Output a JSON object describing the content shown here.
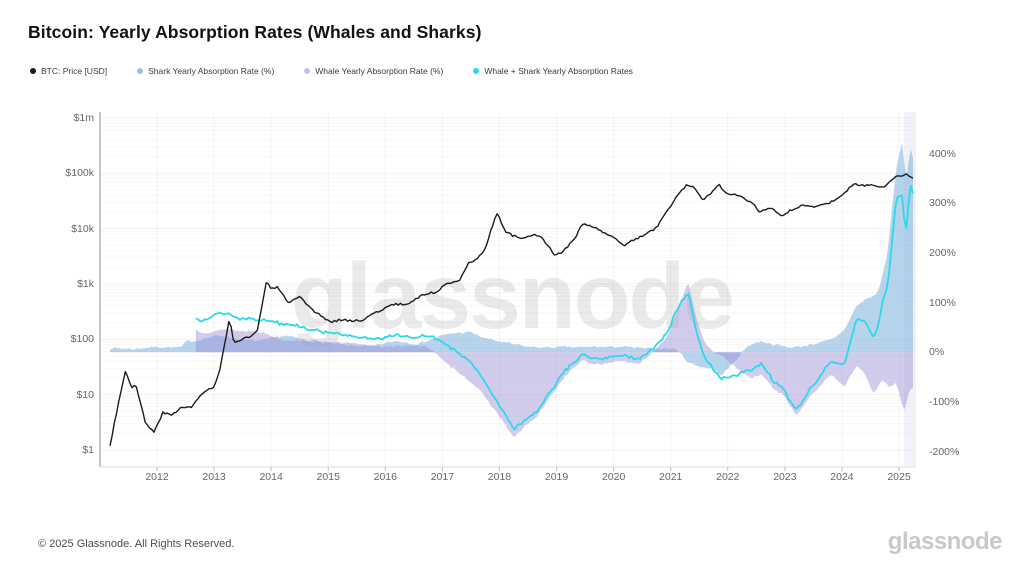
{
  "page": {
    "title": "Bitcoin: Yearly Absorption Rates (Whales and Sharks)"
  },
  "legend": {
    "position": "top-left",
    "items": [
      {
        "label": "BTC: Price [USD]",
        "color": "#1c1c1e"
      },
      {
        "label": "Shark Yearly Absorption Rate (%)",
        "color": "#8fc3e8"
      },
      {
        "label": "Whale Yearly Absorption Rate (%)",
        "color": "#c3bfe6"
      },
      {
        "label": "Whale + Shark Yearly Absorption Rates",
        "color": "#2bd9ea"
      }
    ]
  },
  "watermark": "glassnode",
  "footer": {
    "copyright": "© 2025 Glassnode. All Rights Reserved.",
    "logo": "glassnode"
  },
  "chart_data": {
    "type": "line",
    "subtype": "dual-axis composite: log price line + absorption-rate areas",
    "grid": "faint horizontal log gridlines and yearly vertical gridlines",
    "x_axis": {
      "tick_labels": [
        "2012",
        "2013",
        "2014",
        "2015",
        "2016",
        "2017",
        "2018",
        "2019",
        "2020",
        "2021",
        "2022",
        "2023",
        "2024",
        "2025"
      ],
      "range_years": [
        2011.0,
        2025.3
      ]
    },
    "y_axis_left": {
      "scale": "log",
      "tick_labels": [
        "$1m",
        "$100k",
        "$10k",
        "$1k",
        "$100",
        "$10",
        "$1"
      ],
      "tick_values": [
        1000000,
        100000,
        10000,
        1000,
        100,
        10,
        1
      ]
    },
    "y_axis_right": {
      "scale": "linear",
      "tick_labels": [
        "400%",
        "300%",
        "200%",
        "100%",
        "0%",
        "-100%",
        "-200%"
      ],
      "tick_values": [
        400,
        300,
        200,
        100,
        0,
        -100,
        -200
      ]
    },
    "series": [
      {
        "name": "BTC: Price [USD]",
        "type": "line",
        "axis": "left",
        "color": "#1c1c1e",
        "points": [
          [
            2011.15,
            0.8
          ],
          [
            2011.25,
            3
          ],
          [
            2011.45,
            29
          ],
          [
            2011.55,
            14
          ],
          [
            2011.62,
            17
          ],
          [
            2011.8,
            3.2
          ],
          [
            2011.95,
            2.2
          ],
          [
            2012.1,
            5
          ],
          [
            2012.25,
            4.5
          ],
          [
            2012.45,
            6.5
          ],
          [
            2012.6,
            6
          ],
          [
            2012.8,
            11
          ],
          [
            2013.0,
            13
          ],
          [
            2013.1,
            25
          ],
          [
            2013.27,
            230
          ],
          [
            2013.35,
            80
          ],
          [
            2013.5,
            100
          ],
          [
            2013.75,
            130
          ],
          [
            2013.92,
            1100
          ],
          [
            2014.0,
            780
          ],
          [
            2014.1,
            840
          ],
          [
            2014.3,
            450
          ],
          [
            2014.5,
            600
          ],
          [
            2014.75,
            350
          ],
          [
            2015.05,
            220
          ],
          [
            2015.2,
            245
          ],
          [
            2015.55,
            230
          ],
          [
            2015.85,
            330
          ],
          [
            2016.1,
            420
          ],
          [
            2016.4,
            450
          ],
          [
            2016.6,
            650
          ],
          [
            2016.9,
            730
          ],
          [
            2017.1,
            1050
          ],
          [
            2017.3,
            1250
          ],
          [
            2017.45,
            2500
          ],
          [
            2017.6,
            2700
          ],
          [
            2017.75,
            4300
          ],
          [
            2017.95,
            19000
          ],
          [
            2018.1,
            8500
          ],
          [
            2018.25,
            7000
          ],
          [
            2018.45,
            6500
          ],
          [
            2018.6,
            7400
          ],
          [
            2018.75,
            6400
          ],
          [
            2018.95,
            3300
          ],
          [
            2019.1,
            3800
          ],
          [
            2019.35,
            8000
          ],
          [
            2019.45,
            12500
          ],
          [
            2019.7,
            9800
          ],
          [
            2019.95,
            7200
          ],
          [
            2020.2,
            5300
          ],
          [
            2020.35,
            6800
          ],
          [
            2020.6,
            9200
          ],
          [
            2020.75,
            11500
          ],
          [
            2020.95,
            23000
          ],
          [
            2021.1,
            38000
          ],
          [
            2021.27,
            59000
          ],
          [
            2021.4,
            55000
          ],
          [
            2021.55,
            33000
          ],
          [
            2021.7,
            45000
          ],
          [
            2021.85,
            65000
          ],
          [
            2021.95,
            48000
          ],
          [
            2022.2,
            42000
          ],
          [
            2022.45,
            30000
          ],
          [
            2022.55,
            20000
          ],
          [
            2022.75,
            22000
          ],
          [
            2022.95,
            16500
          ],
          [
            2023.1,
            23000
          ],
          [
            2023.3,
            28000
          ],
          [
            2023.5,
            26500
          ],
          [
            2023.7,
            29000
          ],
          [
            2023.85,
            35000
          ],
          [
            2024.0,
            43000
          ],
          [
            2024.2,
            68000
          ],
          [
            2024.4,
            62000
          ],
          [
            2024.55,
            66000
          ],
          [
            2024.7,
            58000
          ],
          [
            2024.85,
            75000
          ],
          [
            2024.95,
            98000
          ],
          [
            2025.1,
            102000
          ],
          [
            2025.2,
            96000
          ],
          [
            2025.28,
            84000
          ]
        ]
      },
      {
        "name": "Shark Yearly Absorption Rate (%)",
        "type": "area",
        "axis": "right",
        "color_fill": "rgba(124,176,222,0.55)",
        "points": [
          [
            2011.15,
            8
          ],
          [
            2011.5,
            10
          ],
          [
            2011.9,
            12
          ],
          [
            2012.3,
            14
          ],
          [
            2012.44,
            15
          ],
          [
            2012.5,
            26
          ],
          [
            2013.0,
            30
          ],
          [
            2013.4,
            28
          ],
          [
            2013.8,
            26
          ],
          [
            2014.1,
            30
          ],
          [
            2014.5,
            28
          ],
          [
            2014.9,
            22
          ],
          [
            2015.3,
            18
          ],
          [
            2015.7,
            16
          ],
          [
            2016.1,
            18
          ],
          [
            2016.5,
            20
          ],
          [
            2016.9,
            28
          ],
          [
            2017.2,
            38
          ],
          [
            2017.5,
            42
          ],
          [
            2017.8,
            30
          ],
          [
            2018.1,
            18
          ],
          [
            2018.4,
            14
          ],
          [
            2018.8,
            10
          ],
          [
            2019.2,
            12
          ],
          [
            2019.5,
            8
          ],
          [
            2019.8,
            6
          ],
          [
            2020.2,
            8
          ],
          [
            2020.6,
            6
          ],
          [
            2020.9,
            8
          ],
          [
            2021.1,
            5
          ],
          [
            2021.3,
            -20
          ],
          [
            2021.45,
            -25
          ],
          [
            2021.7,
            -30
          ],
          [
            2021.9,
            -45
          ],
          [
            2022.1,
            -20
          ],
          [
            2022.35,
            15
          ],
          [
            2022.6,
            25
          ],
          [
            2022.85,
            15
          ],
          [
            2023.1,
            5
          ],
          [
            2023.3,
            8
          ],
          [
            2023.6,
            18
          ],
          [
            2023.85,
            30
          ],
          [
            2024.05,
            50
          ],
          [
            2024.25,
            95
          ],
          [
            2024.45,
            110
          ],
          [
            2024.55,
            112
          ],
          [
            2024.65,
            125
          ],
          [
            2024.8,
            200
          ],
          [
            2024.95,
            370
          ],
          [
            2025.05,
            420
          ],
          [
            2025.13,
            350
          ],
          [
            2025.2,
            415
          ],
          [
            2025.28,
            375
          ]
        ]
      },
      {
        "name": "Whale Yearly Absorption Rate (%)",
        "type": "area",
        "axis": "right",
        "color_fill": "rgba(152,142,212,0.45)",
        "points": [
          [
            2012.65,
            48
          ],
          [
            2012.8,
            40
          ],
          [
            2013.0,
            40
          ],
          [
            2013.2,
            46
          ],
          [
            2013.45,
            38
          ],
          [
            2013.7,
            42
          ],
          [
            2014.0,
            35
          ],
          [
            2014.3,
            28
          ],
          [
            2014.6,
            22
          ],
          [
            2014.9,
            18
          ],
          [
            2015.2,
            15
          ],
          [
            2015.6,
            14
          ],
          [
            2016.0,
            12
          ],
          [
            2016.4,
            12
          ],
          [
            2016.8,
            5
          ],
          [
            2017.05,
            -25
          ],
          [
            2017.3,
            -45
          ],
          [
            2017.6,
            -75
          ],
          [
            2017.85,
            -110
          ],
          [
            2018.05,
            -140
          ],
          [
            2018.25,
            -175
          ],
          [
            2018.45,
            -150
          ],
          [
            2018.65,
            -130
          ],
          [
            2018.9,
            -85
          ],
          [
            2019.15,
            -45
          ],
          [
            2019.45,
            -12
          ],
          [
            2019.6,
            -18
          ],
          [
            2019.9,
            -25
          ],
          [
            2020.15,
            -18
          ],
          [
            2020.45,
            -22
          ],
          [
            2020.7,
            0
          ],
          [
            2020.95,
            30
          ],
          [
            2021.15,
            90
          ],
          [
            2021.3,
            140
          ],
          [
            2021.45,
            65
          ],
          [
            2021.6,
            20
          ],
          [
            2021.8,
            -5
          ],
          [
            2021.95,
            -12
          ],
          [
            2022.15,
            -35
          ],
          [
            2022.4,
            -55
          ],
          [
            2022.6,
            -48
          ],
          [
            2022.8,
            -75
          ],
          [
            2023.0,
            -90
          ],
          [
            2023.2,
            -128
          ],
          [
            2023.4,
            -95
          ],
          [
            2023.6,
            -70
          ],
          [
            2023.8,
            -48
          ],
          [
            2024.05,
            -70
          ],
          [
            2024.25,
            -28
          ],
          [
            2024.4,
            -45
          ],
          [
            2024.55,
            -85
          ],
          [
            2024.7,
            -60
          ],
          [
            2024.85,
            -75
          ],
          [
            2024.95,
            -65
          ],
          [
            2025.08,
            -125
          ],
          [
            2025.18,
            -80
          ],
          [
            2025.28,
            -70
          ]
        ]
      },
      {
        "name": "Whale + Shark Yearly Absorption Rates",
        "type": "line",
        "axis": "right",
        "color": "#2bd9ea",
        "derived_from": "sum of Shark and Whale rates"
      }
    ]
  }
}
